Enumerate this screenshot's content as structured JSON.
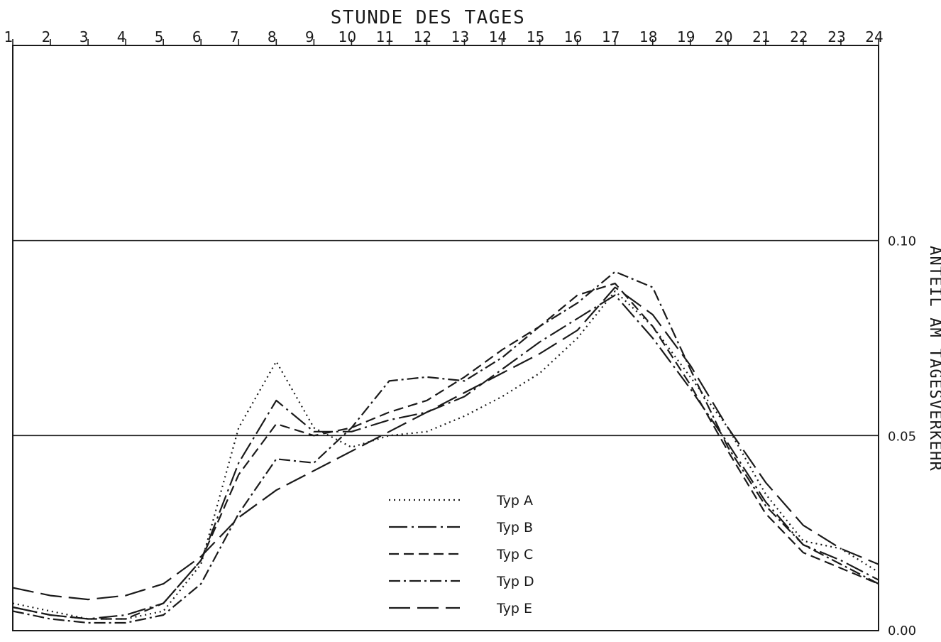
{
  "chart_data": {
    "type": "line",
    "title": "",
    "xlabel": "STUNDE DES TAGES",
    "ylabel": "ANTEIL AM TAGESVERKEHR",
    "x": [
      1,
      2,
      3,
      4,
      5,
      6,
      7,
      8,
      9,
      10,
      11,
      12,
      13,
      14,
      15,
      16,
      17,
      18,
      19,
      20,
      21,
      22,
      23,
      24
    ],
    "x_tick_labels": [
      "1",
      "2",
      "3",
      "4",
      "5",
      "6",
      "7",
      "8",
      "9",
      "10",
      "11",
      "12",
      "13",
      "14",
      "15",
      "16",
      "17",
      "18",
      "19",
      "20",
      "21",
      "22",
      "23",
      "24"
    ],
    "xlim": [
      1,
      24
    ],
    "ylim": [
      0.0,
      0.15
    ],
    "y_tick_labels": [
      "0.00",
      "0.05",
      "0.10"
    ],
    "y_ticks": [
      0.0,
      0.05,
      0.1
    ],
    "grid_y": [
      0.05,
      0.1
    ],
    "x_axis_position": "top",
    "y_axis_position": "right",
    "legend_position": "bottom-center",
    "series": [
      {
        "name": "Typ A",
        "dash": "2,5",
        "values": [
          0.007,
          0.005,
          0.003,
          0.003,
          0.005,
          0.017,
          0.052,
          0.069,
          0.052,
          0.047,
          0.05,
          0.051,
          0.055,
          0.06,
          0.066,
          0.075,
          0.087,
          0.078,
          0.065,
          0.052,
          0.035,
          0.023,
          0.021,
          0.015
        ]
      },
      {
        "name": "Typ B",
        "dash": "26,6,3,6",
        "values": [
          0.006,
          0.004,
          0.003,
          0.004,
          0.007,
          0.018,
          0.043,
          0.059,
          0.051,
          0.051,
          0.054,
          0.056,
          0.06,
          0.067,
          0.074,
          0.08,
          0.086,
          0.075,
          0.062,
          0.048,
          0.033,
          0.022,
          0.018,
          0.013
        ]
      },
      {
        "name": "Typ C",
        "dash": "14,7",
        "values": [
          0.006,
          0.004,
          0.003,
          0.003,
          0.007,
          0.018,
          0.04,
          0.053,
          0.05,
          0.052,
          0.056,
          0.059,
          0.065,
          0.072,
          0.078,
          0.086,
          0.089,
          0.078,
          0.063,
          0.046,
          0.03,
          0.02,
          0.016,
          0.012
        ]
      },
      {
        "name": "Typ D",
        "dash": "16,5,3,5",
        "values": [
          0.005,
          0.003,
          0.002,
          0.002,
          0.004,
          0.012,
          0.03,
          0.044,
          0.043,
          0.052,
          0.064,
          0.065,
          0.064,
          0.07,
          0.078,
          0.084,
          0.092,
          0.088,
          0.067,
          0.047,
          0.032,
          0.022,
          0.017,
          0.012
        ]
      },
      {
        "name": "Typ E",
        "dash": "30,10",
        "values": [
          0.011,
          0.009,
          0.008,
          0.009,
          0.012,
          0.019,
          0.029,
          0.036,
          0.041,
          0.046,
          0.051,
          0.056,
          0.061,
          0.066,
          0.071,
          0.077,
          0.088,
          0.081,
          0.068,
          0.052,
          0.038,
          0.027,
          0.021,
          0.017
        ]
      }
    ]
  }
}
